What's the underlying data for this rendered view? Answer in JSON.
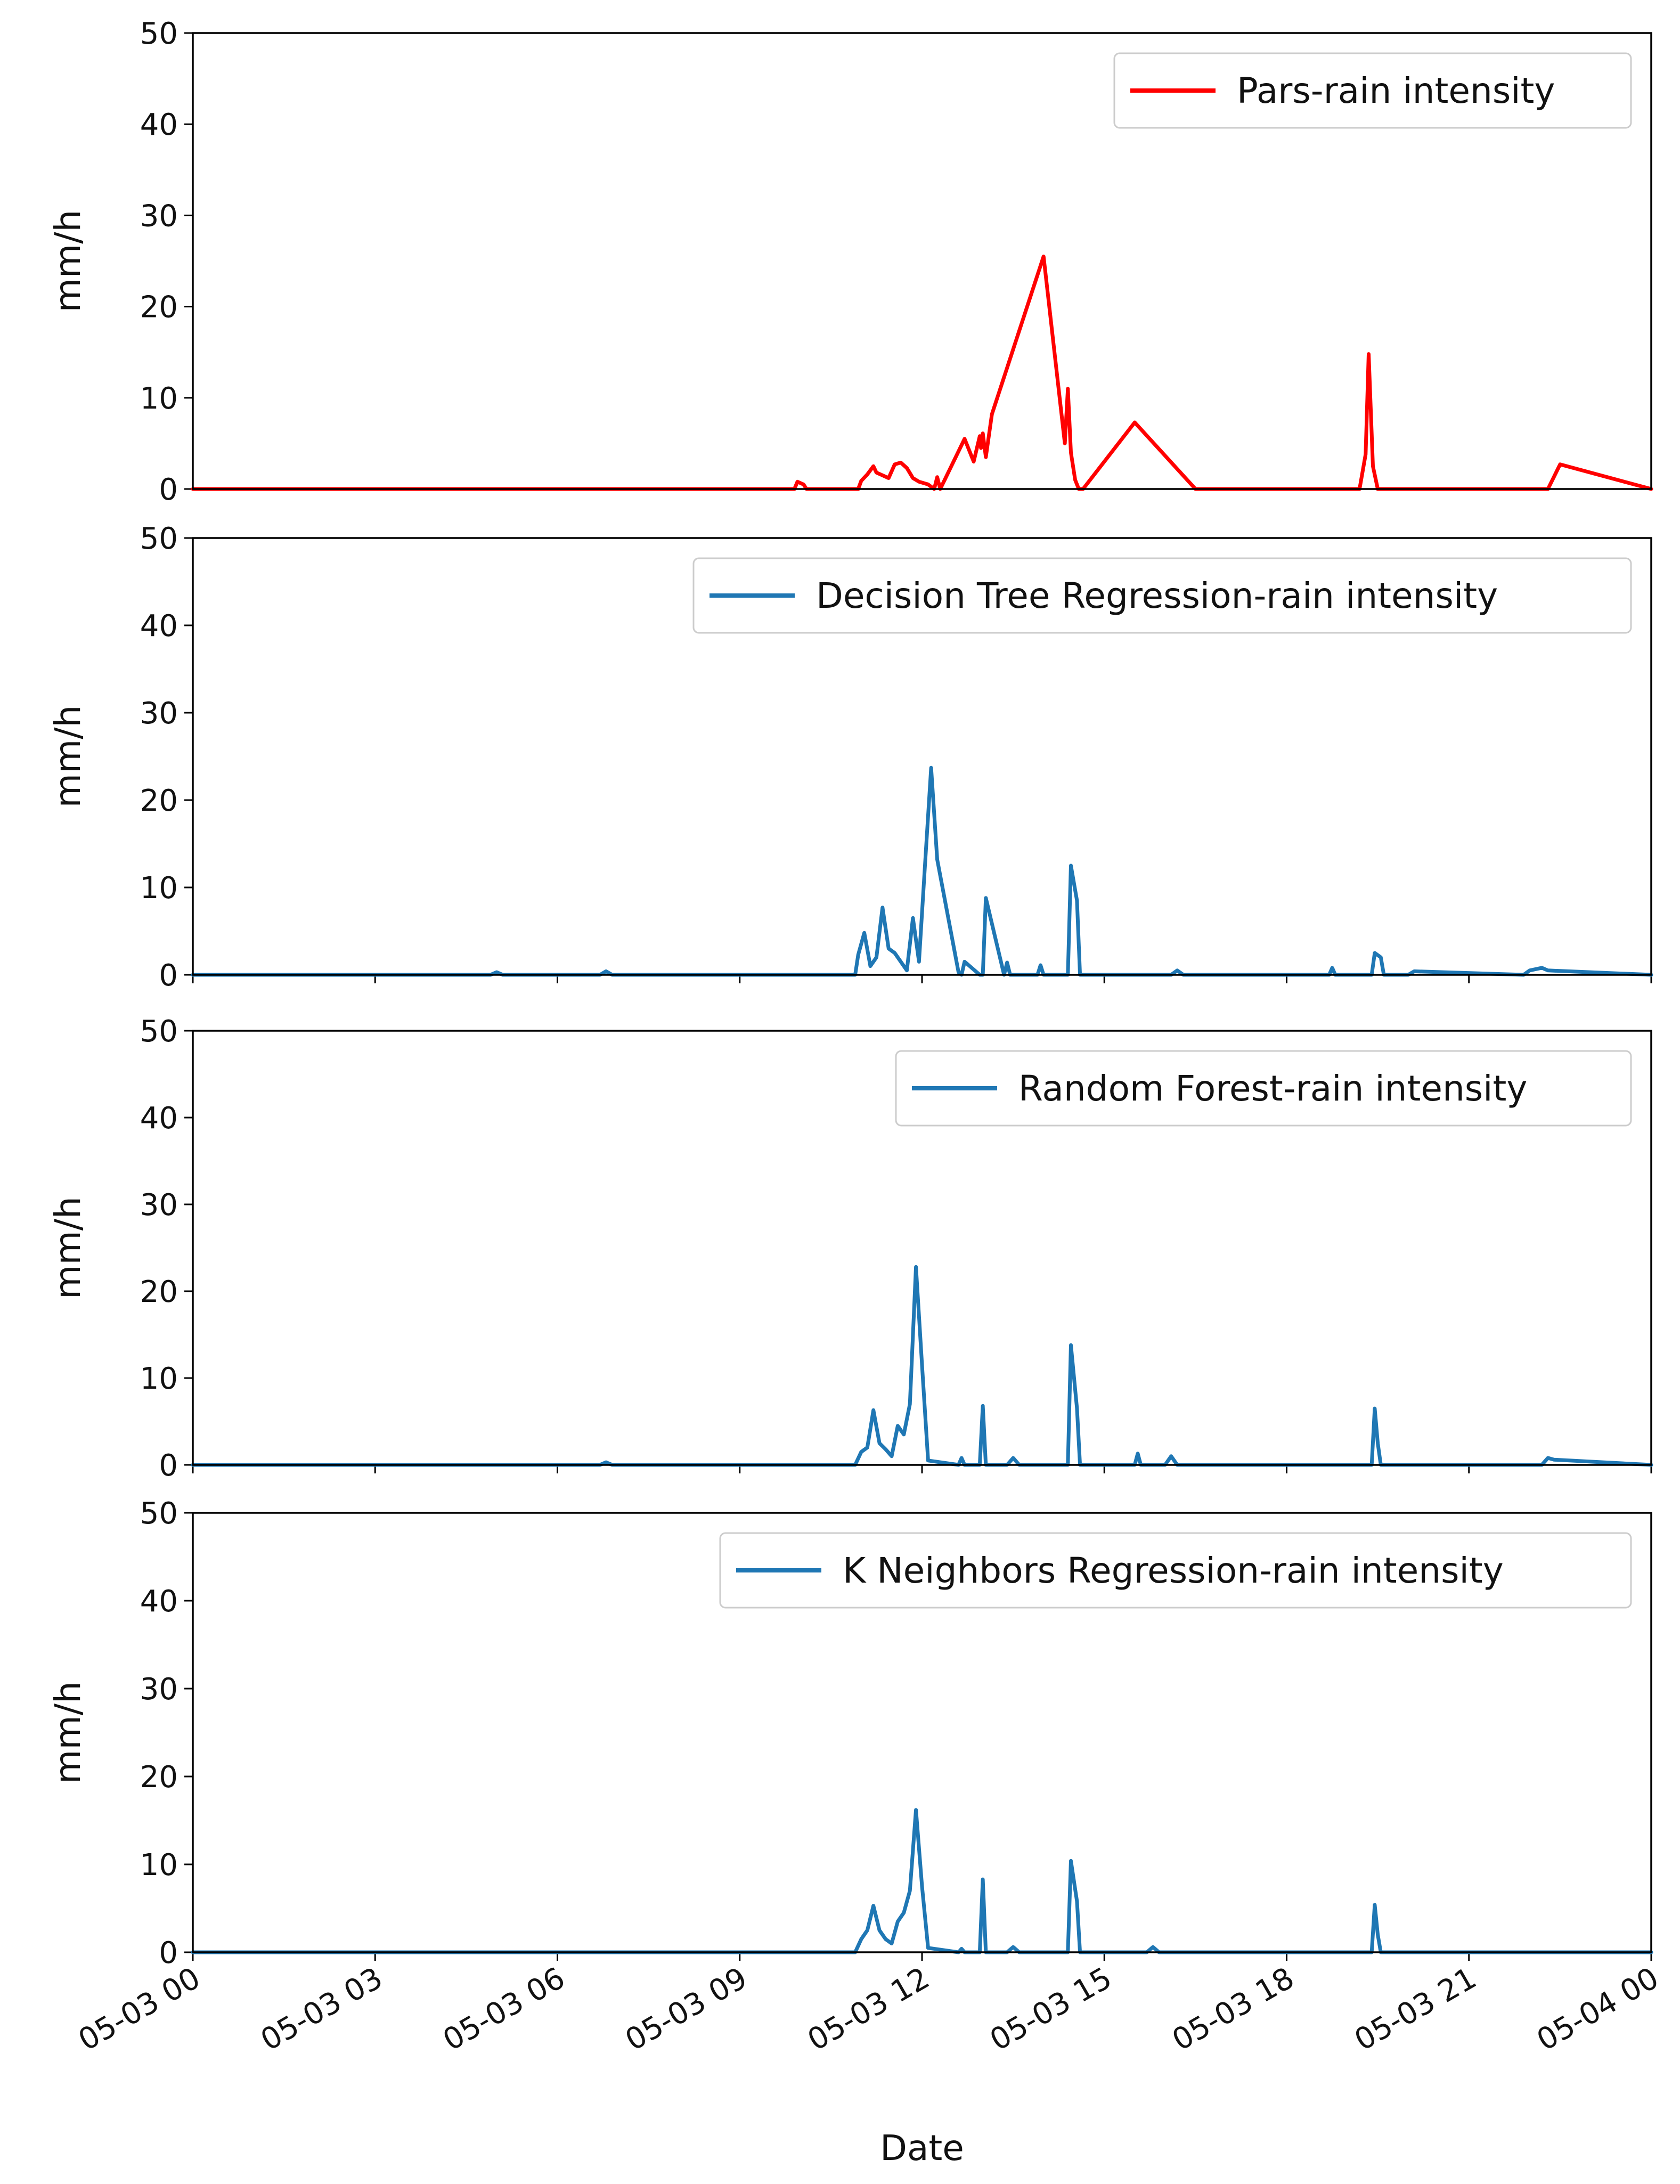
{
  "figure": {
    "xlabel": "Date",
    "x_tick_labels": [
      "05-03 00",
      "05-03 03",
      "05-03 06",
      "05-03 09",
      "05-03 12",
      "05-03 15",
      "05-03 18",
      "05-03 21",
      "05-04 00"
    ]
  },
  "chart_data": [
    {
      "type": "line",
      "title": "",
      "legend": "Pars-rain intensity",
      "legend_position": "top-right",
      "color": "#ff0000",
      "ylabel": "mm/h",
      "ylim": [
        0,
        50
      ],
      "yticks": [
        0,
        10,
        20,
        30,
        40,
        50
      ],
      "xlim_hours": [
        0,
        24
      ],
      "x_ticks_visible": false,
      "x_hours": [
        0,
        9.9,
        9.95,
        10.05,
        10.1,
        10.95,
        11.0,
        11.1,
        11.2,
        11.25,
        11.35,
        11.45,
        11.55,
        11.65,
        11.75,
        11.85,
        11.95,
        12.1,
        12.2,
        12.25,
        12.3,
        12.7,
        12.85,
        12.95,
        12.97,
        13.0,
        13.05,
        13.15,
        14.0,
        14.35,
        14.4,
        14.45,
        14.52,
        14.58,
        14.65,
        15.5,
        16.5,
        19.2,
        19.3,
        19.35,
        19.42,
        19.5,
        19.6,
        22.3,
        22.5,
        24
      ],
      "values": [
        0,
        0,
        0.8,
        0.5,
        0,
        0,
        0.9,
        1.6,
        2.5,
        1.8,
        1.5,
        1.2,
        2.7,
        2.9,
        2.3,
        1.2,
        0.8,
        0.5,
        0,
        1.3,
        0,
        5.5,
        3.0,
        5.8,
        4.5,
        6.1,
        3.5,
        8.2,
        25.5,
        5.0,
        11.0,
        4.0,
        1.0,
        0,
        0,
        7.3,
        0,
        0,
        3.8,
        14.8,
        2.5,
        0,
        0,
        0,
        2.7,
        0
      ]
    },
    {
      "type": "line",
      "title": "",
      "legend": "Decision Tree Regression-rain intensity",
      "legend_position": "top-right",
      "color": "#1f77b4",
      "ylabel": "mm/h",
      "ylim": [
        0,
        50
      ],
      "yticks": [
        0,
        10,
        20,
        30,
        40,
        50
      ],
      "xlim_hours": [
        0,
        24
      ],
      "x_ticks_visible": true,
      "x_hours": [
        0,
        4.9,
        5.0,
        5.1,
        6.7,
        6.8,
        6.9,
        10.9,
        10.95,
        11.05,
        11.15,
        11.25,
        11.35,
        11.45,
        11.55,
        11.75,
        11.85,
        11.95,
        12.05,
        12.15,
        12.25,
        12.6,
        12.65,
        12.7,
        12.95,
        13.0,
        13.05,
        13.35,
        13.4,
        13.45,
        13.9,
        13.95,
        14.0,
        14.4,
        14.45,
        14.55,
        14.6,
        16.1,
        16.2,
        16.3,
        18.7,
        18.75,
        18.8,
        19.4,
        19.45,
        19.55,
        19.6,
        20.0,
        20.1,
        21.9,
        22.0,
        22.2,
        22.3,
        24
      ],
      "values": [
        0,
        0,
        0.3,
        0,
        0,
        0.4,
        0,
        0,
        2.3,
        4.8,
        1.0,
        2.0,
        7.7,
        3.0,
        2.5,
        0.5,
        6.5,
        1.5,
        12.7,
        23.7,
        13.2,
        0.3,
        0,
        1.5,
        0,
        0,
        8.8,
        0,
        1.4,
        0,
        0,
        1.1,
        0,
        0,
        12.5,
        8.5,
        0,
        0,
        0.5,
        0,
        0,
        0.8,
        0,
        0,
        2.5,
        2.0,
        0,
        0,
        0.4,
        0,
        0.5,
        0.8,
        0.5,
        0
      ]
    },
    {
      "type": "line",
      "title": "",
      "legend": "Random Forest-rain intensity",
      "legend_position": "top-right",
      "color": "#1f77b4",
      "ylabel": "mm/h",
      "ylim": [
        0,
        50
      ],
      "yticks": [
        0,
        10,
        20,
        30,
        40,
        50
      ],
      "xlim_hours": [
        0,
        24
      ],
      "x_ticks_visible": true,
      "x_hours": [
        0,
        6.7,
        6.8,
        6.9,
        10.9,
        11.0,
        11.1,
        11.2,
        11.3,
        11.4,
        11.5,
        11.6,
        11.7,
        11.8,
        11.9,
        12.0,
        12.1,
        12.6,
        12.65,
        12.7,
        12.95,
        13.0,
        13.05,
        13.4,
        13.5,
        13.6,
        14.4,
        14.45,
        14.55,
        14.6,
        15.5,
        15.55,
        15.6,
        16.0,
        16.1,
        16.2,
        19.4,
        19.45,
        19.5,
        19.55,
        22.2,
        22.3,
        22.4,
        24
      ],
      "values": [
        0,
        0,
        0.3,
        0,
        0,
        1.5,
        2.0,
        6.3,
        2.5,
        1.8,
        1.0,
        4.5,
        3.5,
        7.0,
        22.8,
        11.5,
        0.5,
        0,
        0.8,
        0,
        0,
        6.8,
        0,
        0,
        0.8,
        0,
        0,
        13.8,
        6.5,
        0,
        0,
        1.3,
        0,
        0,
        1.0,
        0,
        0,
        6.5,
        2.5,
        0,
        0,
        0.8,
        0.6,
        0
      ]
    },
    {
      "type": "line",
      "title": "",
      "legend": "K Neighbors Regression-rain intensity",
      "legend_position": "top-right",
      "color": "#1f77b4",
      "ylabel": "mm/h",
      "ylim": [
        0,
        50
      ],
      "yticks": [
        0,
        10,
        20,
        30,
        40,
        50
      ],
      "xlim_hours": [
        0,
        24
      ],
      "x_ticks_visible": true,
      "x_hours": [
        0,
        10.9,
        11.0,
        11.1,
        11.2,
        11.3,
        11.4,
        11.5,
        11.6,
        11.7,
        11.8,
        11.9,
        12.0,
        12.1,
        12.6,
        12.65,
        12.7,
        12.95,
        13.0,
        13.05,
        13.4,
        13.5,
        13.6,
        14.4,
        14.45,
        14.55,
        14.6,
        15.7,
        15.8,
        15.9,
        19.4,
        19.45,
        19.5,
        19.55,
        24
      ],
      "values": [
        0,
        0,
        1.5,
        2.5,
        5.3,
        2.5,
        1.5,
        1.0,
        3.5,
        4.5,
        7.0,
        16.2,
        7.5,
        0.5,
        0,
        0.4,
        0,
        0,
        8.3,
        0,
        0,
        0.6,
        0,
        0,
        10.4,
        5.8,
        0,
        0,
        0.6,
        0,
        0,
        5.4,
        2.0,
        0,
        0
      ]
    }
  ]
}
